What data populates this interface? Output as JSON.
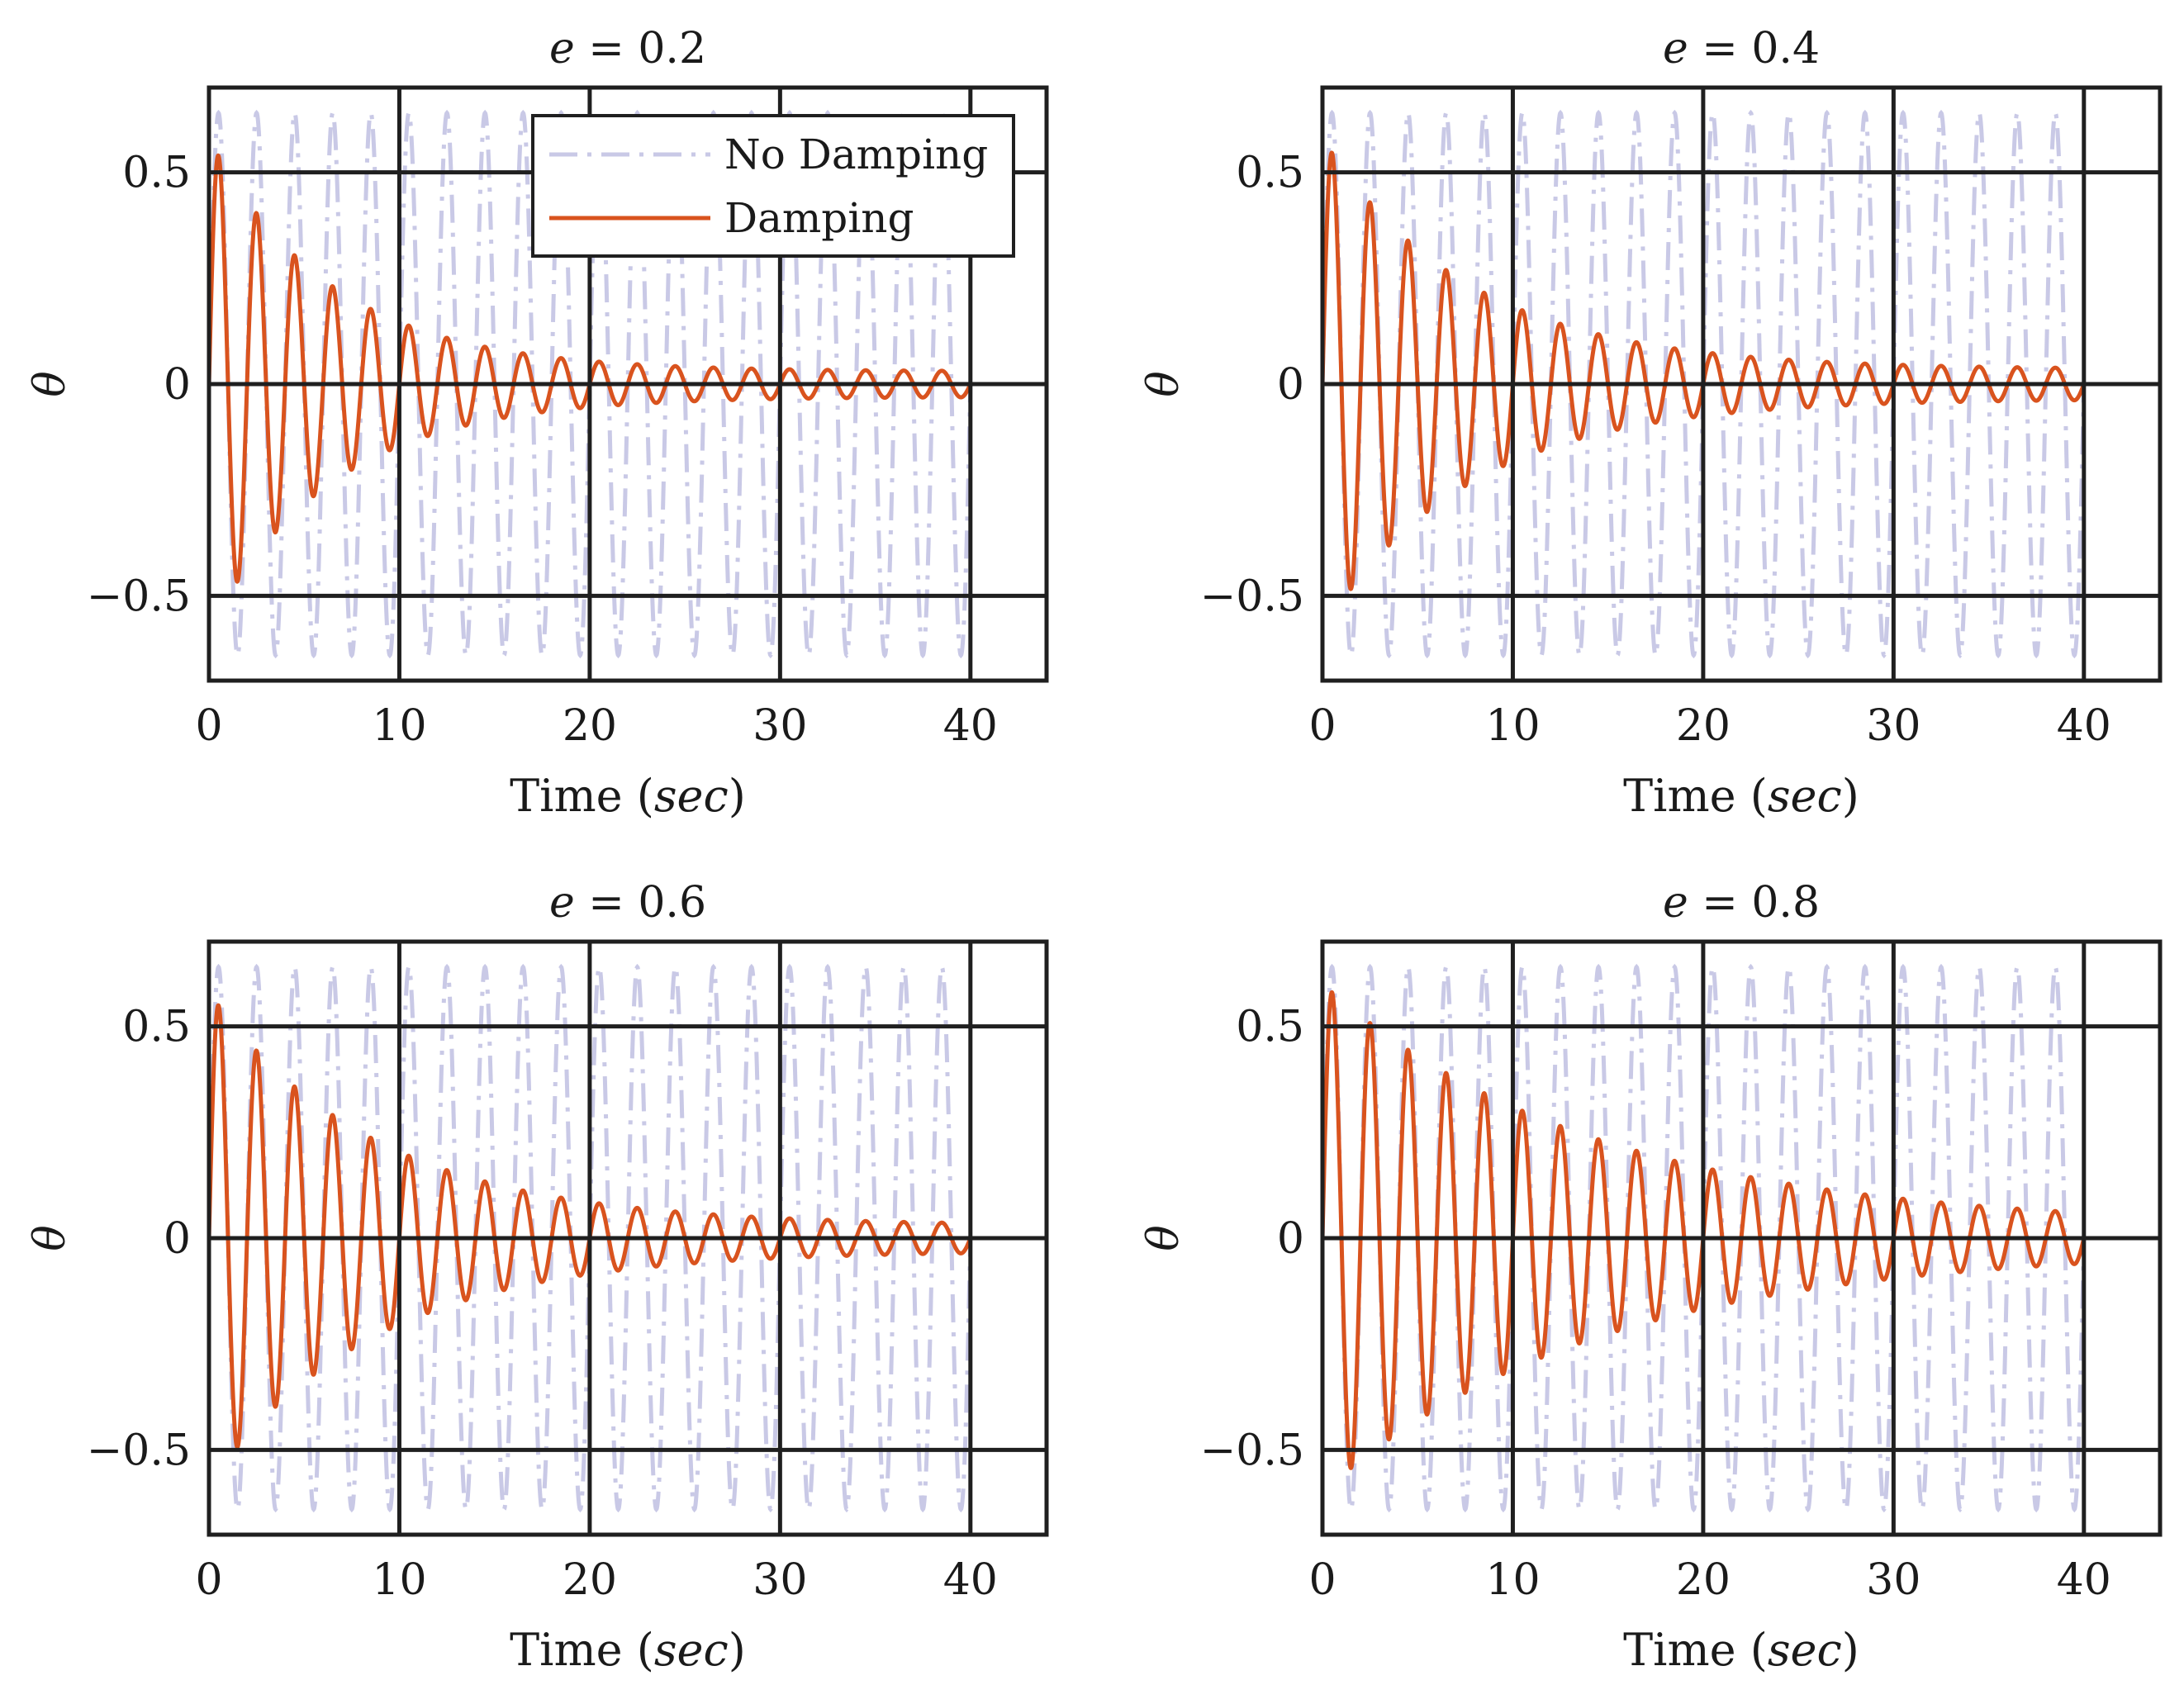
{
  "figure": {
    "legend": {
      "no_damping": "No Damping",
      "damping": "Damping"
    }
  },
  "colors": {
    "no_damping": "#c9c9e6",
    "damping": "#d9531e",
    "axes": "#1f1f1f"
  },
  "chart_data": [
    {
      "type": "line",
      "title": "e = 0.2",
      "title_var": "e",
      "title_rest": " = 0.2",
      "xlabel": "Time (sec)",
      "xlabel_main": "Time (",
      "xlabel_unit": "sec",
      "xlabel_close": ")",
      "ylabel": "θ",
      "xlim": [
        0,
        44
      ],
      "ylim": [
        -0.7,
        0.7
      ],
      "xticks": [
        0,
        10,
        20,
        30,
        40
      ],
      "xtick_labels": [
        "0",
        "10",
        "20",
        "30",
        "40"
      ],
      "yticks": [
        -0.5,
        0,
        0.5
      ],
      "ytick_labels": [
        "−0.5",
        "0",
        "0.5"
      ],
      "grid": true,
      "legend": true,
      "legend_position": "top-right",
      "series": [
        {
          "name": "No Damping",
          "style": "dash-dot",
          "amplitude": 0.64,
          "period": 2.0,
          "decay": 0,
          "floor": 0,
          "x_range": [
            0,
            40
          ]
        },
        {
          "name": "Damping",
          "style": "solid",
          "amplitude": 0.58,
          "period": 2.0,
          "decay": 0.155,
          "floor": 0.03,
          "x_range": [
            0,
            40
          ]
        }
      ]
    },
    {
      "type": "line",
      "title": "e = 0.4",
      "title_var": "e",
      "title_rest": " = 0.4",
      "xlabel": "Time (sec)",
      "xlabel_main": "Time (",
      "xlabel_unit": "sec",
      "xlabel_close": ")",
      "ylabel": "θ",
      "xlim": [
        0,
        44
      ],
      "ylim": [
        -0.7,
        0.7
      ],
      "xticks": [
        0,
        10,
        20,
        30,
        40
      ],
      "xtick_labels": [
        "0",
        "10",
        "20",
        "30",
        "40"
      ],
      "yticks": [
        -0.5,
        0,
        0.5
      ],
      "ytick_labels": [
        "−0.5",
        "0",
        "0.5"
      ],
      "grid": true,
      "legend": false,
      "series": [
        {
          "name": "No Damping",
          "style": "dash-dot",
          "amplitude": 0.64,
          "period": 2.0,
          "decay": 0,
          "floor": 0,
          "x_range": [
            0,
            40
          ]
        },
        {
          "name": "Damping",
          "style": "solid",
          "amplitude": 0.58,
          "period": 2.0,
          "decay": 0.13,
          "floor": 0.035,
          "x_range": [
            0,
            40
          ]
        }
      ]
    },
    {
      "type": "line",
      "title": "e = 0.6",
      "title_var": "e",
      "title_rest": " = 0.6",
      "xlabel": "Time (sec)",
      "xlabel_main": "Time (",
      "xlabel_unit": "sec",
      "xlabel_close": ")",
      "ylabel": "θ",
      "xlim": [
        0,
        44
      ],
      "ylim": [
        -0.7,
        0.7
      ],
      "xticks": [
        0,
        10,
        20,
        30,
        40
      ],
      "xtick_labels": [
        "0",
        "10",
        "20",
        "30",
        "40"
      ],
      "yticks": [
        -0.5,
        0,
        0.5
      ],
      "ytick_labels": [
        "−0.5",
        "0",
        "0.5"
      ],
      "grid": true,
      "legend": false,
      "series": [
        {
          "name": "No Damping",
          "style": "dash-dot",
          "amplitude": 0.64,
          "period": 2.0,
          "decay": 0,
          "floor": 0,
          "x_range": [
            0,
            40
          ]
        },
        {
          "name": "Damping",
          "style": "solid",
          "amplitude": 0.58,
          "period": 2.0,
          "decay": 0.115,
          "floor": 0.03,
          "x_range": [
            0,
            40
          ]
        }
      ]
    },
    {
      "type": "line",
      "title": "e = 0.8",
      "title_var": "e",
      "title_rest": " = 0.8",
      "xlabel": "Time (sec)",
      "xlabel_main": "Time (",
      "xlabel_unit": "sec",
      "xlabel_close": ")",
      "ylabel": "θ",
      "xlim": [
        0,
        44
      ],
      "ylim": [
        -0.7,
        0.7
      ],
      "xticks": [
        0,
        10,
        20,
        30,
        40
      ],
      "xtick_labels": [
        "0",
        "10",
        "20",
        "30",
        "40"
      ],
      "yticks": [
        -0.5,
        0,
        0.5
      ],
      "ytick_labels": [
        "−0.5",
        "0",
        "0.5"
      ],
      "grid": true,
      "legend": false,
      "series": [
        {
          "name": "No Damping",
          "style": "dash-dot",
          "amplitude": 0.64,
          "period": 2.0,
          "decay": 0,
          "floor": 0,
          "x_range": [
            0,
            40
          ]
        },
        {
          "name": "Damping",
          "style": "solid",
          "amplitude": 0.6,
          "period": 2.0,
          "decay": 0.07,
          "floor": 0.025,
          "x_range": [
            0,
            40
          ]
        }
      ]
    }
  ]
}
